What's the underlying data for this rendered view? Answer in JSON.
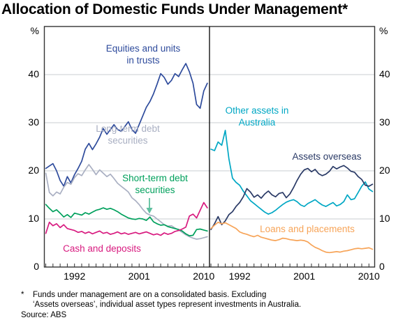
{
  "title": "Allocation of Domestic Funds Under Management*",
  "footnote": {
    "marker": "*",
    "text": "Funds under management are on a consolidated basis. Excluding\n‘Assets overseas’, individual asset types represent investments in Australia.",
    "source": "Source: ABS"
  },
  "chart_data": {
    "type": "line",
    "title": "Allocation of Domestic Funds Under Management",
    "y_axis": {
      "unit": "%",
      "ticks": [
        0,
        10,
        20,
        30,
        40
      ],
      "max": 50,
      "gridlines": [
        10,
        20,
        30,
        40
      ],
      "grid": true
    },
    "x_axis": {
      "domain_years": [
        1987.8,
        2010.8
      ],
      "tick_every_years": 1,
      "labeled_years": [
        "1992",
        "2001",
        "2010"
      ]
    },
    "x_start": 1988,
    "x_step": 0.5,
    "panels": [
      {
        "name": "domestic-assets-panel",
        "series": [
          {
            "id": "equities",
            "label": "Equities and units\nin trusts",
            "color": "#2e4b9c",
            "values": [
              20.5,
              21.0,
              21.5,
              20.0,
              18.0,
              16.8,
              18.8,
              17.5,
              19.2,
              20.5,
              22.0,
              24.5,
              25.7,
              24.4,
              25.6,
              27.0,
              28.8,
              27.6,
              28.6,
              29.6,
              28.6,
              28.2,
              29.2,
              30.2,
              28.6,
              27.8,
              29.6,
              31.4,
              33.2,
              34.4,
              36.0,
              38.0,
              40.2,
              39.4,
              38.0,
              38.8,
              40.2,
              39.6,
              41.0,
              42.3,
              40.6,
              38.2,
              33.8,
              33.0,
              36.6,
              38.2
            ]
          },
          {
            "id": "long-term-debt",
            "label": "Long-term debt\nsecurities",
            "color": "#a9afc2",
            "values": [
              19.5,
              15.5,
              14.8,
              15.6,
              15.2,
              16.6,
              17.6,
              17.2,
              18.6,
              19.4,
              19.0,
              20.2,
              21.3,
              20.3,
              19.2,
              20.2,
              19.5,
              18.8,
              19.3,
              18.4,
              17.4,
              16.8,
              16.2,
              15.6,
              14.4,
              13.8,
              13.0,
              12.0,
              11.2,
              10.8,
              10.6,
              10.0,
              9.4,
              8.8,
              8.5,
              8.6,
              8.1,
              7.7,
              7.2,
              6.7,
              6.3,
              6.0,
              5.8,
              5.9,
              6.1,
              6.3
            ]
          },
          {
            "id": "short-term-debt",
            "label": "Short-term debt\nsecurities",
            "color": "#00a05c",
            "arrow_color": "#5fbf9f",
            "values": [
              13.0,
              12.2,
              11.5,
              11.9,
              11.2,
              10.4,
              10.9,
              10.3,
              11.2,
              11.0,
              10.8,
              11.3,
              11.0,
              11.4,
              11.8,
              12.0,
              12.3,
              12.0,
              12.2,
              11.9,
              11.5,
              11.0,
              10.6,
              10.2,
              10.0,
              9.9,
              10.1,
              10.0,
              9.7,
              10.4,
              9.4,
              9.0,
              8.7,
              8.8,
              8.4,
              8.2,
              8.0,
              7.8,
              7.5,
              6.9,
              6.5,
              6.6,
              7.8,
              7.9,
              7.7,
              7.5
            ]
          },
          {
            "id": "cash-deposits",
            "label": "Cash and deposits",
            "color": "#d81a7f",
            "values": [
              7.0,
              9.3,
              8.6,
              9.0,
              8.2,
              8.8,
              8.0,
              7.8,
              7.6,
              7.2,
              7.4,
              7.0,
              7.3,
              6.9,
              7.2,
              7.5,
              7.0,
              7.2,
              6.8,
              7.0,
              7.3,
              6.9,
              7.1,
              6.8,
              7.0,
              7.2,
              6.9,
              7.1,
              7.3,
              7.0,
              6.7,
              6.9,
              6.6,
              7.1,
              6.8,
              7.0,
              7.4,
              7.6,
              7.9,
              8.3,
              10.6,
              11.0,
              10.2,
              11.8,
              13.4,
              12.3
            ]
          }
        ]
      },
      {
        "name": "overseas-panel",
        "series": [
          {
            "id": "other-assets-australia",
            "label": "Other assets in\nAustralia",
            "color": "#00a7c4",
            "values": [
              24.5,
              24.2,
              26.0,
              25.3,
              28.4,
              22.5,
              18.5,
              17.6,
              17.0,
              15.8,
              14.8,
              13.8,
              13.2,
              12.6,
              12.0,
              11.4,
              11.0,
              11.3,
              11.8,
              12.4,
              13.0,
              13.5,
              13.8,
              14.0,
              13.6,
              12.9,
              12.6,
              13.2,
              13.6,
              14.0,
              13.4,
              12.9,
              12.6,
              13.0,
              13.4,
              12.7,
              13.0,
              13.6,
              15.0,
              14.0,
              14.2,
              15.5,
              16.8,
              17.7,
              16.2,
              15.7
            ]
          },
          {
            "id": "assets-overseas",
            "label": "Assets overseas",
            "color": "#2a3a66",
            "values": [
              7.8,
              9.0,
              10.5,
              8.8,
              9.6,
              10.9,
              11.5,
              12.6,
              13.4,
              14.6,
              16.3,
              15.6,
              14.5,
              15.0,
              14.3,
              15.2,
              15.8,
              15.0,
              14.6,
              15.3,
              15.5,
              14.4,
              15.2,
              16.5,
              18.0,
              19.3,
              20.2,
              20.5,
              19.8,
              20.3,
              19.4,
              19.0,
              19.3,
              19.9,
              20.9,
              20.4,
              20.8,
              21.1,
              20.6,
              19.9,
              19.7,
              18.8,
              18.2,
              17.0,
              16.8,
              17.2
            ]
          },
          {
            "id": "loans-placements",
            "label": "Loans and placements",
            "color": "#f7a458",
            "values": [
              8.0,
              8.7,
              9.3,
              9.0,
              9.2,
              8.8,
              8.4,
              8.0,
              7.3,
              7.0,
              6.8,
              6.5,
              6.3,
              6.6,
              6.2,
              6.0,
              5.8,
              5.6,
              5.5,
              5.7,
              6.0,
              5.9,
              5.7,
              5.6,
              5.5,
              5.6,
              5.5,
              5.2,
              4.6,
              4.1,
              3.8,
              3.4,
              3.1,
              3.0,
              3.1,
              3.2,
              3.1,
              3.3,
              3.4,
              3.6,
              3.8,
              3.9,
              3.8,
              3.9,
              4.0,
              3.7
            ]
          }
        ]
      }
    ]
  }
}
